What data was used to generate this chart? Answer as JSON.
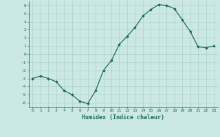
{
  "x": [
    0,
    1,
    2,
    3,
    4,
    5,
    6,
    7,
    8,
    9,
    10,
    11,
    12,
    13,
    14,
    15,
    16,
    17,
    18,
    19,
    20,
    21,
    22,
    23
  ],
  "y": [
    -3.0,
    -2.7,
    -3.0,
    -3.4,
    -4.5,
    -5.0,
    -5.8,
    -6.1,
    -4.5,
    -2.0,
    -0.8,
    1.2,
    2.2,
    3.3,
    4.7,
    5.5,
    6.1,
    6.0,
    5.6,
    4.2,
    2.8,
    0.9,
    0.8,
    1.0
  ],
  "xlim": [
    -0.5,
    23.5
  ],
  "ylim": [
    -6.5,
    6.5
  ],
  "yticks": [
    -6,
    -5,
    -4,
    -3,
    -2,
    -1,
    0,
    1,
    2,
    3,
    4,
    5,
    6
  ],
  "xticks": [
    0,
    1,
    2,
    3,
    4,
    5,
    6,
    7,
    8,
    9,
    10,
    11,
    12,
    13,
    14,
    15,
    16,
    17,
    18,
    19,
    20,
    21,
    22,
    23
  ],
  "xlabel": "Humidex (Indice chaleur)",
  "line_color": "#1a6b5a",
  "marker": "D",
  "marker_size": 1.8,
  "bg_color": "#cce8e4",
  "grid_color": "#aad0ca",
  "title": ""
}
